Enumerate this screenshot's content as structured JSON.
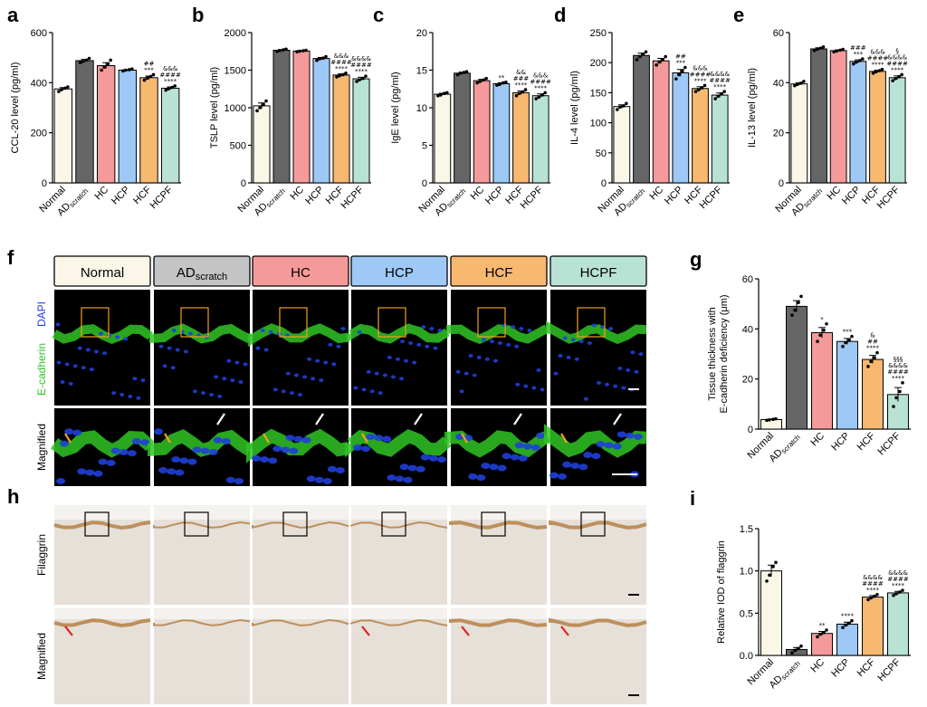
{
  "colors": {
    "Normal": "#fbf7e8",
    "AD": "#666666",
    "HC": "#f59a9a",
    "HCP": "#9ec8f5",
    "HCF": "#f7b870",
    "HCPF": "#b8e2d4",
    "ecadherin": "#2fc424",
    "dapi": "#1f3fd8",
    "ihc_bg": "#e6e0d8",
    "ihc_stain": "#b88650",
    "arrow_red": "#e02020",
    "arrow_orange": "#f0a020"
  },
  "group_labels": [
    {
      "main": "Normal",
      "sub": ""
    },
    {
      "main": "AD",
      "sub": "scratch"
    },
    {
      "main": "HC",
      "sub": ""
    },
    {
      "main": "HCP",
      "sub": ""
    },
    {
      "main": "HCF",
      "sub": ""
    },
    {
      "main": "HCPF",
      "sub": ""
    }
  ],
  "group_keys": [
    "Normal",
    "AD",
    "HC",
    "HCP",
    "HCF",
    "HCPF"
  ],
  "chart_data": [
    {
      "panel": "a",
      "type": "bar",
      "ylabel": "CCL-20 level (pg/ml)",
      "ylim": [
        0,
        600
      ],
      "yticks": [
        0,
        200,
        400,
        600
      ],
      "values": [
        375,
        488,
        468,
        450,
        420,
        378
      ],
      "points": [
        [
          365,
          372,
          378,
          383
        ],
        [
          480,
          485,
          490,
          497
        ],
        [
          450,
          462,
          475,
          490
        ],
        [
          447,
          450,
          452,
          455
        ],
        [
          410,
          418,
          425,
          432
        ],
        [
          370,
          375,
          381,
          387
        ]
      ],
      "sig": [
        [],
        [],
        [],
        [],
        [
          "##",
          "***"
        ],
        [
          "&&&",
          "####",
          "****"
        ]
      ]
    },
    {
      "panel": "b",
      "type": "bar",
      "ylabel": "TSLP level (pg/ml)",
      "ylim": [
        0,
        2000
      ],
      "yticks": [
        0,
        500,
        1000,
        1500,
        2000
      ],
      "values": [
        1025,
        1765,
        1755,
        1655,
        1435,
        1385
      ],
      "points": [
        [
          960,
          1000,
          1040,
          1090
        ],
        [
          1750,
          1760,
          1770,
          1780
        ],
        [
          1745,
          1752,
          1758,
          1765
        ],
        [
          1630,
          1650,
          1660,
          1680
        ],
        [
          1410,
          1425,
          1440,
          1460
        ],
        [
          1350,
          1370,
          1390,
          1420
        ]
      ],
      "sig": [
        [],
        [],
        [],
        [],
        [
          "&&&",
          "####",
          "****"
        ],
        [
          "&&&&",
          "####",
          "****"
        ]
      ]
    },
    {
      "panel": "c",
      "type": "bar",
      "ylabel": "IgE level (pg/ml)",
      "ylim": [
        0,
        20
      ],
      "yticks": [
        0,
        5,
        10,
        15,
        20
      ],
      "values": [
        11.8,
        14.6,
        13.6,
        13.2,
        12.0,
        11.6
      ],
      "points": [
        [
          11.6,
          11.7,
          11.9,
          12.0
        ],
        [
          14.4,
          14.6,
          14.7,
          14.8
        ],
        [
          13.3,
          13.5,
          13.7,
          13.9
        ],
        [
          13.0,
          13.1,
          13.3,
          13.4
        ],
        [
          11.6,
          11.9,
          12.1,
          12.4
        ],
        [
          11.2,
          11.4,
          11.7,
          12.0
        ]
      ],
      "sig": [
        [],
        [],
        [],
        [
          "**"
        ],
        [
          "&&",
          "###",
          "****"
        ],
        [
          "&&&",
          "####",
          "****"
        ]
      ]
    },
    {
      "panel": "d",
      "type": "bar",
      "ylabel": "IL-4 level (pg/ml)",
      "ylim": [
        0,
        250
      ],
      "yticks": [
        0,
        50,
        100,
        150,
        200,
        250
      ],
      "values": [
        127,
        212,
        203,
        183,
        157,
        146
      ],
      "points": [
        [
          122,
          126,
          128,
          132
        ],
        [
          205,
          210,
          214,
          218
        ],
        [
          196,
          201,
          205,
          210
        ],
        [
          173,
          180,
          186,
          192
        ],
        [
          152,
          155,
          158,
          162
        ],
        [
          140,
          144,
          148,
          152
        ]
      ],
      "sig": [
        [],
        [],
        [],
        [
          "##",
          "***"
        ],
        [
          "&&&",
          "####",
          "****"
        ],
        [
          "&&&&",
          "####",
          "****"
        ]
      ]
    },
    {
      "panel": "e",
      "type": "bar",
      "ylabel": "IL-13 level (pg/ml)",
      "ylim": [
        0,
        60
      ],
      "yticks": [
        0,
        20,
        40,
        60
      ],
      "values": [
        39.5,
        53.5,
        52.8,
        48.5,
        44.5,
        42.0
      ],
      "points": [
        [
          38.8,
          39.3,
          39.8,
          40.5
        ],
        [
          52.8,
          53.3,
          53.8,
          54.3
        ],
        [
          52.3,
          52.6,
          53.0,
          53.3
        ],
        [
          47.5,
          48.2,
          48.8,
          49.5
        ],
        [
          43.8,
          44.3,
          44.8,
          45.3
        ],
        [
          40.8,
          41.6,
          42.4,
          43.2
        ]
      ],
      "sig": [
        [],
        [],
        [],
        [
          "###",
          "***"
        ],
        [
          "&&&",
          "####",
          "****"
        ],
        [
          "§",
          "&&&&",
          "####",
          "****"
        ]
      ]
    },
    {
      "panel": "g",
      "type": "bar",
      "ylabel_lines": [
        "Tissue thickness with",
        "E-cadherin deficiency (μm)"
      ],
      "ylim": [
        0,
        60
      ],
      "yticks": [
        0,
        20,
        40,
        60
      ],
      "values": [
        3.8,
        49.0,
        38.5,
        35.0,
        27.8,
        13.8
      ],
      "points": [
        [
          3.5,
          3.7,
          3.9,
          4.1
        ],
        [
          45.5,
          47.5,
          50.5,
          53.0
        ],
        [
          35.0,
          37.5,
          39.5,
          42.0
        ],
        [
          33.0,
          34.5,
          35.5,
          37.0
        ],
        [
          25.0,
          27.0,
          28.5,
          30.5
        ],
        [
          9.0,
          12.5,
          15.0,
          18.5
        ]
      ],
      "sig": [
        [],
        [],
        [
          "*"
        ],
        [
          "***"
        ],
        [
          "&",
          "##",
          "****"
        ],
        [
          "§§§",
          "&&&&",
          "####",
          "****"
        ]
      ]
    },
    {
      "panel": "i",
      "type": "bar",
      "ylabel": "Relative IOD of flaggrin",
      "ylim": [
        0,
        1.5
      ],
      "yticks": [
        0.0,
        0.5,
        1.0,
        1.5
      ],
      "tick_labels": [
        "0.0",
        "0.5",
        "1.0",
        "1.5"
      ],
      "values": [
        1.0,
        0.07,
        0.26,
        0.37,
        0.69,
        0.74
      ],
      "points": [
        [
          0.88,
          0.95,
          1.05,
          1.1
        ],
        [
          0.03,
          0.06,
          0.08,
          0.11
        ],
        [
          0.22,
          0.25,
          0.27,
          0.3
        ],
        [
          0.33,
          0.36,
          0.38,
          0.41
        ],
        [
          0.66,
          0.68,
          0.7,
          0.72
        ],
        [
          0.71,
          0.73,
          0.75,
          0.77
        ]
      ],
      "sig": [
        [],
        [],
        [
          "**"
        ],
        [
          "****"
        ],
        [
          "&&&&",
          "####",
          "****"
        ],
        [
          "&&&&",
          "####",
          "****"
        ]
      ]
    }
  ],
  "panel_letters": {
    "a": "a",
    "b": "b",
    "c": "c",
    "d": "d",
    "e": "e",
    "f": "f",
    "g": "g",
    "h": "h",
    "i": "i"
  },
  "micro_headers": [
    {
      "main": "Normal",
      "sub": ""
    },
    {
      "main": "AD",
      "sub": "scratch"
    },
    {
      "main": "HC",
      "sub": ""
    },
    {
      "main": "HCP",
      "sub": ""
    },
    {
      "main": "HCF",
      "sub": ""
    },
    {
      "main": "HCPF",
      "sub": ""
    }
  ],
  "row_labels": {
    "f_top_green": "E-cadherin",
    "f_top_blue": "DAPI",
    "f_bottom": "Magnified",
    "h_top": "Filaggrin",
    "h_bottom": "Magnified"
  }
}
